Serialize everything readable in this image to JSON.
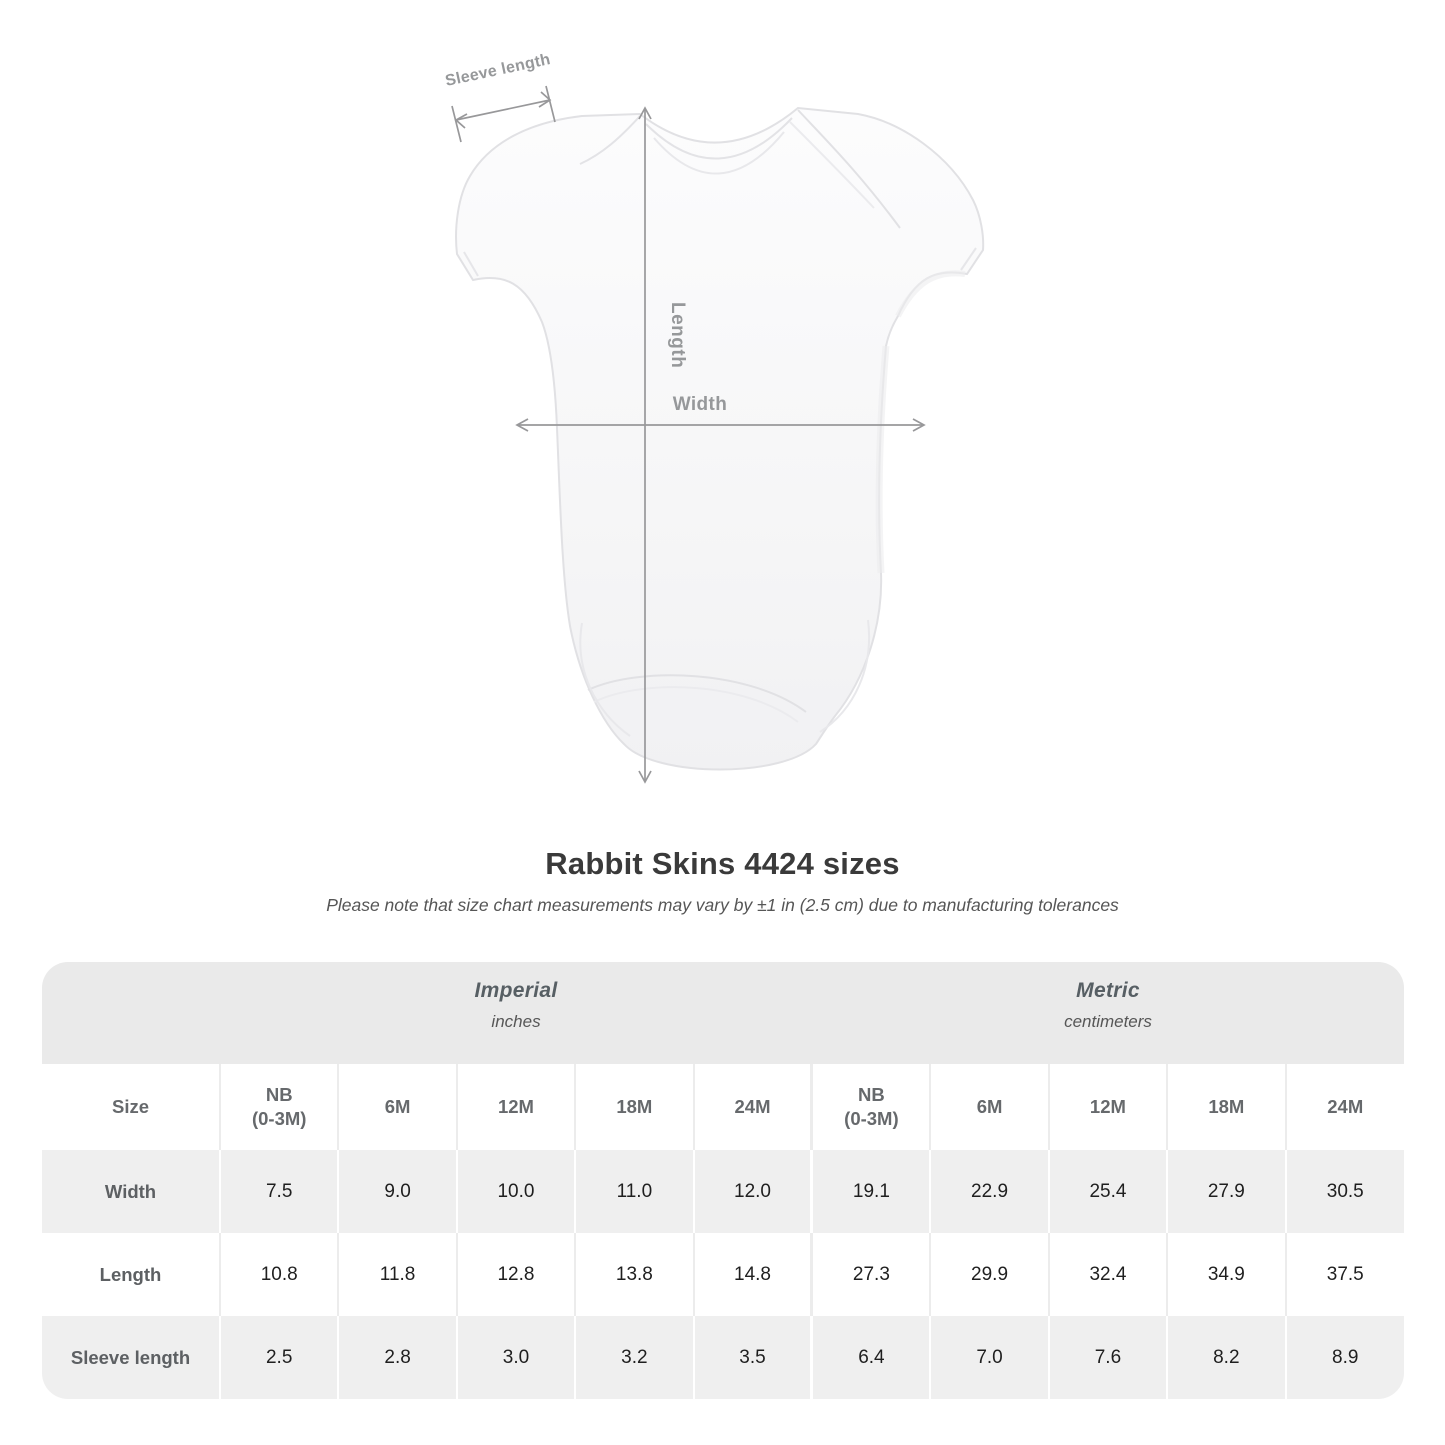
{
  "figure": {
    "sleeve_length_label": "Sleeve length",
    "length_label": "Length",
    "width_label": "Width",
    "annotation_color": "#96989a",
    "garment": "white infant bodysuit, front view, lap-shoulder neckline"
  },
  "title": "Rabbit Skins 4424 sizes",
  "subtitle": "Please note that size chart measurements may vary by ±1 in (2.5 cm) due to manufacturing tolerances",
  "table": {
    "size_header": "Size",
    "unit_groups": [
      {
        "name": "Imperial",
        "unit": "inches"
      },
      {
        "name": "Metric",
        "unit": "centimeters"
      }
    ],
    "columns": [
      "NB\n(0-3M)",
      "6M",
      "12M",
      "18M",
      "24M",
      "NB\n(0-3M)",
      "6M",
      "12M",
      "18M",
      "24M"
    ],
    "rows": [
      {
        "label": "Width",
        "values": [
          "7.5",
          "9.0",
          "10.0",
          "11.0",
          "12.0",
          "19.1",
          "22.9",
          "25.4",
          "27.9",
          "30.5"
        ]
      },
      {
        "label": "Length",
        "values": [
          "10.8",
          "11.8",
          "12.8",
          "13.8",
          "14.8",
          "27.3",
          "29.9",
          "32.4",
          "34.9",
          "37.5"
        ]
      },
      {
        "label": "Sleeve length",
        "values": [
          "2.5",
          "2.8",
          "3.0",
          "3.2",
          "3.5",
          "6.4",
          "7.0",
          "7.6",
          "8.2",
          "8.9"
        ]
      }
    ],
    "colors": {
      "band_bg": "#eaeaea",
      "alt_row_bg": "#efefef",
      "header_text": "#66696c",
      "value_text": "#1f1f1f"
    }
  }
}
